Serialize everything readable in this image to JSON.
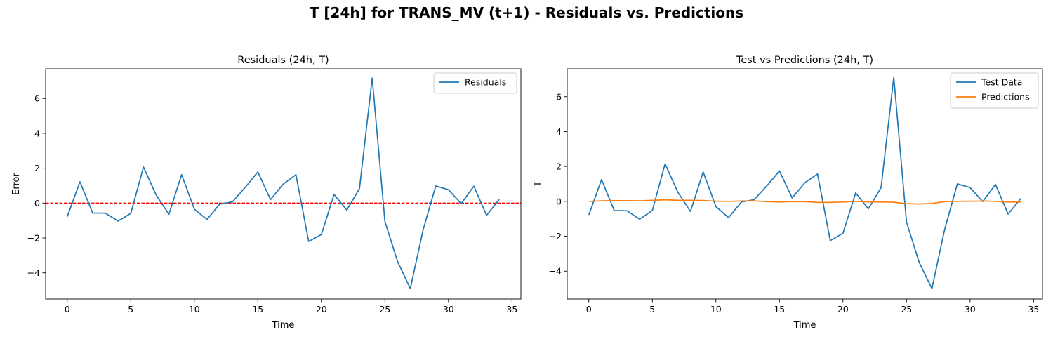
{
  "figure": {
    "suptitle": "T [24h] for TRANS_MV (t+1) - Residuals vs. Predictions"
  },
  "colors": {
    "blue": "#1f77b4",
    "orange": "#ff7f0e",
    "zero_line": "#ff0000"
  },
  "chart_data": [
    {
      "type": "line",
      "title": "Residuals (24h, T)",
      "xlabel": "Time",
      "ylabel": "Error",
      "xlim": [
        -1.7,
        35.7
      ],
      "ylim": [
        -5.5,
        7.7
      ],
      "xticks": [
        0,
        5,
        10,
        15,
        20,
        25,
        30,
        35
      ],
      "yticks": [
        -4,
        -2,
        0,
        2,
        4,
        6
      ],
      "legend_position": "upper right",
      "reference_line": {
        "y": 0,
        "style": "dashed",
        "color": "#ff0000"
      },
      "x": [
        0,
        1,
        2,
        3,
        4,
        5,
        6,
        7,
        8,
        9,
        10,
        11,
        12,
        13,
        14,
        15,
        16,
        17,
        18,
        19,
        20,
        21,
        22,
        23,
        24,
        25,
        26,
        27,
        28,
        29,
        30,
        31,
        32,
        33,
        34
      ],
      "series": [
        {
          "name": "Residuals",
          "color": "#1f77b4",
          "values": [
            -0.78,
            1.22,
            -0.57,
            -0.58,
            -1.03,
            -0.59,
            2.07,
            0.46,
            -0.64,
            1.63,
            -0.35,
            -0.94,
            -0.06,
            0.07,
            0.9,
            1.79,
            0.2,
            1.09,
            1.63,
            -2.2,
            -1.8,
            0.5,
            -0.4,
            0.84,
            7.17,
            -1.05,
            -3.35,
            -4.9,
            -1.55,
            0.98,
            0.77,
            -0.03,
            0.97,
            -0.7,
            0.21
          ]
        }
      ]
    },
    {
      "type": "line",
      "title": "Test vs Predictions (24h, T)",
      "xlabel": "Time",
      "ylabel": "T",
      "xlim": [
        -1.7,
        35.7
      ],
      "ylim": [
        -5.6,
        7.6
      ],
      "xticks": [
        0,
        5,
        10,
        15,
        20,
        25,
        30,
        35
      ],
      "yticks": [
        -4,
        -2,
        0,
        2,
        4,
        6
      ],
      "legend_position": "upper right",
      "x": [
        0,
        1,
        2,
        3,
        4,
        5,
        6,
        7,
        8,
        9,
        10,
        11,
        12,
        13,
        14,
        15,
        16,
        17,
        18,
        19,
        20,
        21,
        22,
        23,
        24,
        25,
        26,
        27,
        28,
        29,
        30,
        31,
        32,
        33,
        34
      ],
      "series": [
        {
          "name": "Test Data",
          "color": "#1f77b4",
          "values": [
            -0.78,
            1.25,
            -0.53,
            -0.54,
            -1.02,
            -0.52,
            2.15,
            0.53,
            -0.58,
            1.69,
            -0.3,
            -0.93,
            -0.04,
            0.1,
            0.88,
            1.75,
            0.2,
            1.07,
            1.57,
            -2.25,
            -1.83,
            0.48,
            -0.43,
            0.79,
            7.12,
            -1.18,
            -3.5,
            -5.0,
            -1.62,
            1.0,
            0.79,
            -0.01,
            0.97,
            -0.73,
            0.17
          ]
        },
        {
          "name": "Predictions",
          "color": "#ff7f0e",
          "values": [
            0.0,
            0.03,
            0.04,
            0.04,
            0.03,
            0.06,
            0.09,
            0.06,
            0.06,
            0.05,
            0.01,
            0.0,
            0.02,
            0.03,
            -0.02,
            -0.04,
            -0.01,
            -0.02,
            -0.06,
            -0.06,
            -0.04,
            0.0,
            -0.03,
            -0.04,
            -0.05,
            -0.13,
            -0.15,
            -0.12,
            -0.02,
            0.0,
            0.01,
            0.02,
            0.0,
            -0.04,
            -0.04
          ]
        }
      ]
    }
  ]
}
